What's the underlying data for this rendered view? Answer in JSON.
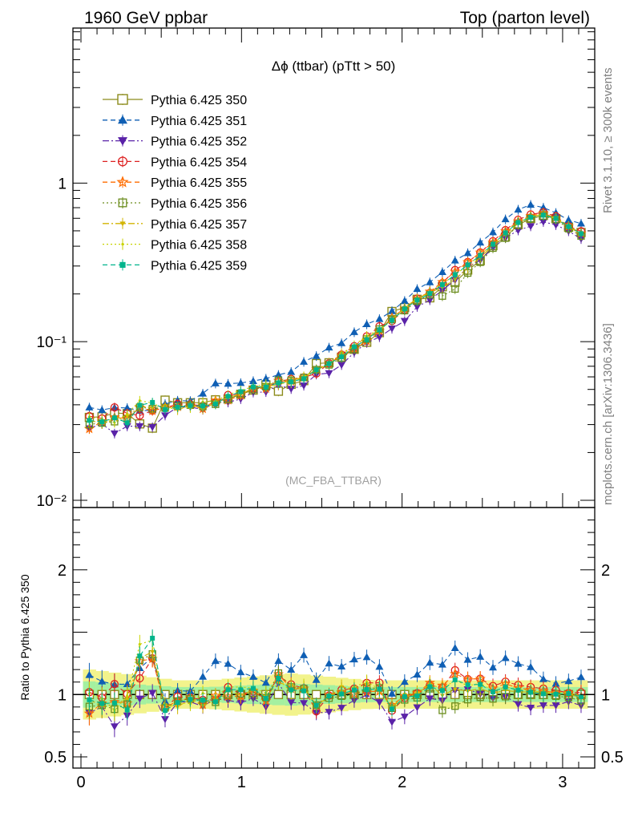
{
  "header": {
    "left": "1960 GeV ppbar",
    "right": "Top (parton level)"
  },
  "plot_title": "Δϕ (ttbar) (pTtt > 50)",
  "watermark": "(MC_FBA_TTBAR)",
  "side_labels": {
    "upper": "Rivet 3.1.10, ≥ 300k events",
    "lower": "mcplots.cern.ch [arXiv:1306.3436]"
  },
  "chart_data": [
    {
      "type": "scatter",
      "panel": "main",
      "yscale": "log",
      "xlim": [
        -0.05,
        3.2
      ],
      "ylim": [
        0.009,
        9.5
      ],
      "grid": false,
      "legend": "top-left",
      "y_ticks": [
        {
          "value": 1,
          "label": "1"
        },
        {
          "value": 0.1,
          "label": "10⁻¹"
        },
        {
          "value": 0.01,
          "label": "10⁻²"
        }
      ],
      "x": [
        0.052,
        0.131,
        0.209,
        0.288,
        0.366,
        0.445,
        0.524,
        0.602,
        0.681,
        0.759,
        0.838,
        0.916,
        0.995,
        1.073,
        1.152,
        1.23,
        1.309,
        1.388,
        1.466,
        1.545,
        1.623,
        1.702,
        1.78,
        1.859,
        1.937,
        2.016,
        2.094,
        2.173,
        2.251,
        2.33,
        2.409,
        2.487,
        2.566,
        2.644,
        2.723,
        2.801,
        2.88,
        2.958,
        3.037,
        3.115
      ],
      "series": [
        {
          "name": "Pythia 6.425 350",
          "color": "#8c8c1c",
          "marker": "open-square",
          "dash": "solid",
          "values": [
            0.0333,
            0.0336,
            0.0355,
            0.0352,
            0.0303,
            0.0285,
            0.0428,
            0.0412,
            0.0412,
            0.0412,
            0.043,
            0.0435,
            0.0466,
            0.0495,
            0.0534,
            0.0487,
            0.0538,
            0.0568,
            0.0728,
            0.0736,
            0.0799,
            0.0895,
            0.0991,
            0.114,
            0.155,
            0.164,
            0.185,
            0.189,
            0.222,
            0.237,
            0.283,
            0.324,
            0.403,
            0.458,
            0.546,
            0.598,
            0.624,
            0.597,
            0.528,
            0.488
          ]
        },
        {
          "name": "Pythia 6.425 351",
          "color": "#0f5fb4",
          "marker": "filled-triangle-up",
          "dash": "dashed",
          "values": [
            0.0385,
            0.0371,
            0.0384,
            0.0382,
            0.0367,
            0.037,
            0.0405,
            0.0425,
            0.0423,
            0.0471,
            0.0546,
            0.0543,
            0.0549,
            0.0565,
            0.0585,
            0.0618,
            0.0645,
            0.0748,
            0.0813,
            0.0919,
            0.0979,
            0.115,
            0.129,
            0.139,
            0.156,
            0.181,
            0.215,
            0.237,
            0.275,
            0.325,
            0.362,
            0.422,
            0.49,
            0.592,
            0.681,
            0.73,
            0.701,
            0.649,
            0.585,
            0.556
          ]
        },
        {
          "name": "Pythia 6.425 352",
          "color": "#5a22a8",
          "marker": "filled-triangle-down",
          "dash": "dashdot",
          "values": [
            0.0284,
            0.0303,
            0.0264,
            0.0293,
            0.0293,
            0.0289,
            0.0343,
            0.0387,
            0.0388,
            0.0373,
            0.0416,
            0.0415,
            0.0435,
            0.0479,
            0.0482,
            0.0531,
            0.0504,
            0.0529,
            0.0622,
            0.0633,
            0.0714,
            0.0854,
            0.0985,
            0.107,
            0.121,
            0.135,
            0.166,
            0.183,
            0.211,
            0.245,
            0.295,
            0.326,
            0.391,
            0.451,
            0.504,
            0.535,
            0.57,
            0.545,
            0.498,
            0.445
          ]
        },
        {
          "name": "Pythia 6.425 354",
          "color": "#dd2020",
          "marker": "open-circle",
          "dash": "dashed",
          "values": [
            0.0339,
            0.0328,
            0.0385,
            0.0353,
            0.0342,
            0.0368,
            0.0382,
            0.0405,
            0.0402,
            0.0394,
            0.0411,
            0.0461,
            0.0468,
            0.0507,
            0.0516,
            0.056,
            0.0582,
            0.0596,
            0.063,
            0.073,
            0.0829,
            0.0937,
            0.108,
            0.125,
            0.135,
            0.159,
            0.187,
            0.203,
            0.234,
            0.283,
            0.318,
            0.365,
            0.43,
            0.505,
            0.587,
            0.634,
            0.654,
            0.618,
            0.534,
            0.497
          ]
        },
        {
          "name": "Pythia 6.425 355",
          "color": "#ff6d00",
          "marker": "open-star",
          "dash": "dashed",
          "values": [
            0.0282,
            0.0313,
            0.0334,
            0.0327,
            0.0384,
            0.0367,
            0.0386,
            0.0389,
            0.0402,
            0.0378,
            0.0426,
            0.0428,
            0.0459,
            0.0511,
            0.0507,
            0.0567,
            0.0563,
            0.0595,
            0.0668,
            0.0733,
            0.0813,
            0.0901,
            0.101,
            0.117,
            0.142,
            0.162,
            0.187,
            0.207,
            0.238,
            0.276,
            0.318,
            0.365,
            0.423,
            0.497,
            0.575,
            0.621,
            0.643,
            0.604,
            0.535,
            0.482
          ]
        },
        {
          "name": "Pythia 6.425 356",
          "color": "#6a8c1c",
          "marker": "open-square-small",
          "dash": "dotted",
          "values": [
            0.0301,
            0.0307,
            0.0313,
            0.0326,
            0.0386,
            0.0378,
            0.0382,
            0.0391,
            0.0398,
            0.039,
            0.0403,
            0.0434,
            0.0469,
            0.0499,
            0.0521,
            0.0571,
            0.0571,
            0.0595,
            0.0666,
            0.0714,
            0.0789,
            0.0893,
            0.104,
            0.12,
            0.138,
            0.157,
            0.18,
            0.198,
            0.194,
            0.215,
            0.271,
            0.317,
            0.389,
            0.45,
            0.544,
            0.598,
            0.62,
            0.589,
            0.516,
            0.464
          ]
        },
        {
          "name": "Pythia 6.425 357",
          "color": "#d2b400",
          "marker": "tri-down",
          "dash": "dashdot",
          "values": [
            0.0321,
            0.0303,
            0.0329,
            0.0339,
            0.0391,
            0.0383,
            0.0393,
            0.0371,
            0.0396,
            0.0375,
            0.0411,
            0.0448,
            0.0464,
            0.0512,
            0.0526,
            0.0532,
            0.0578,
            0.0594,
            0.0666,
            0.0722,
            0.0848,
            0.0937,
            0.107,
            0.117,
            0.139,
            0.164,
            0.187,
            0.204,
            0.22,
            0.247,
            0.291,
            0.339,
            0.407,
            0.473,
            0.557,
            0.61,
            0.636,
            0.595,
            0.532,
            0.474
          ]
        },
        {
          "name": "Pythia 6.425 358",
          "color": "#c8d200",
          "marker": "dot",
          "dash": "dotted",
          "values": [
            0.0335,
            0.0325,
            0.0309,
            0.0349,
            0.0425,
            0.041,
            0.0375,
            0.0385,
            0.0382,
            0.0417,
            0.0423,
            0.0462,
            0.0493,
            0.0521,
            0.0541,
            0.0547,
            0.0548,
            0.0606,
            0.0664,
            0.0721,
            0.0821,
            0.095,
            0.109,
            0.119,
            0.136,
            0.161,
            0.185,
            0.205,
            0.232,
            0.264,
            0.303,
            0.353,
            0.415,
            0.484,
            0.573,
            0.615,
            0.636,
            0.605,
            0.537,
            0.482
          ]
        },
        {
          "name": "Pythia 6.425 359",
          "color": "#00b48c",
          "marker": "filled-square",
          "dash": "dashed",
          "values": [
            0.0319,
            0.0312,
            0.0331,
            0.0308,
            0.0397,
            0.0414,
            0.0373,
            0.0386,
            0.0396,
            0.0393,
            0.0405,
            0.0452,
            0.0484,
            0.0519,
            0.0518,
            0.055,
            0.0558,
            0.0584,
            0.0665,
            0.0727,
            0.0803,
            0.0927,
            0.103,
            0.119,
            0.137,
            0.161,
            0.183,
            0.201,
            0.229,
            0.265,
            0.305,
            0.35,
            0.412,
            0.486,
            0.565,
            0.609,
            0.628,
            0.599,
            0.532,
            0.48
          ]
        }
      ]
    },
    {
      "type": "scatter",
      "panel": "ratio",
      "ylabel": "Ratio to Pythia 6.425 350",
      "xlim": [
        -0.05,
        3.2
      ],
      "ylim": [
        0.41,
        2.5
      ],
      "y_ticks": [
        {
          "value": 2,
          "label": "2"
        },
        {
          "value": 1,
          "label": "1"
        },
        {
          "value": 0.5,
          "label": "0.5"
        }
      ],
      "x_ticks": [
        {
          "value": 0,
          "label": "0"
        },
        {
          "value": 1,
          "label": "1"
        },
        {
          "value": 2,
          "label": "2"
        },
        {
          "value": 3,
          "label": "3"
        }
      ],
      "ratio_series": [
        {
          "name": "Pythia 6.425 351",
          "values": [
            1.157,
            1.105,
            1.081,
            1.084,
            1.212,
            1.298,
            0.946,
            1.032,
            1.026,
            1.143,
            1.269,
            1.247,
            1.179,
            1.142,
            1.095,
            1.27,
            1.199,
            1.316,
            1.117,
            1.249,
            1.225,
            1.282,
            1.3,
            1.223,
            1.007,
            1.102,
            1.16,
            1.256,
            1.24,
            1.373,
            1.279,
            1.303,
            1.217,
            1.293,
            1.247,
            1.22,
            1.124,
            1.087,
            1.108,
            1.14
          ]
        },
        {
          "name": "Pythia 6.425 352",
          "values": [
            0.853,
            0.901,
            0.744,
            0.831,
            0.967,
            1.013,
            0.802,
            0.939,
            0.941,
            0.906,
            0.967,
            0.954,
            0.934,
            0.968,
            0.902,
            1.09,
            0.937,
            0.931,
            0.854,
            0.86,
            0.893,
            0.954,
            0.994,
            0.938,
            0.78,
            0.822,
            0.897,
            0.969,
            0.952,
            1.034,
            1.042,
            1.005,
            0.97,
            0.985,
            0.923,
            0.894,
            0.913,
            0.913,
            0.943,
            0.912
          ]
        },
        {
          "name": "Pythia 6.425 354",
          "values": [
            1.019,
            0.975,
            1.084,
            1.004,
            1.13,
            1.29,
            0.892,
            0.983,
            0.975,
            0.957,
            0.956,
            1.059,
            1.004,
            1.025,
            0.967,
            1.15,
            1.081,
            1.05,
            0.866,
            0.992,
            1.038,
            1.047,
            1.093,
            1.095,
            0.871,
            0.971,
            1.011,
            1.073,
            1.055,
            1.195,
            1.124,
            1.127,
            1.068,
            1.103,
            1.076,
            1.06,
            1.047,
            1.035,
            1.012,
            1.018
          ]
        },
        {
          "name": "Pythia 6.425 355",
          "values": [
            0.848,
            0.93,
            0.941,
            0.93,
            1.268,
            1.287,
            0.901,
            0.944,
            0.976,
            0.918,
            0.991,
            0.984,
            0.985,
            1.032,
            0.949,
            1.163,
            1.046,
            1.048,
            0.917,
            0.996,
            1.017,
            1.007,
            1.023,
            1.026,
            0.916,
            0.988,
            1.011,
            1.095,
            1.072,
            1.165,
            1.124,
            1.127,
            1.05,
            1.085,
            1.053,
            1.038,
            1.031,
            1.012,
            1.013,
            0.988
          ]
        },
        {
          "name": "Pythia 6.425 356",
          "values": [
            0.904,
            0.914,
            0.882,
            0.925,
            1.275,
            1.325,
            0.893,
            0.948,
            0.966,
            0.946,
            0.938,
            0.997,
            1.006,
            1.009,
            0.976,
            1.172,
            1.061,
            1.047,
            0.915,
            0.971,
            0.987,
            0.998,
            1.05,
            1.053,
            0.89,
            0.957,
            0.974,
            1.046,
            0.873,
            0.907,
            0.959,
            0.978,
            0.965,
            0.983,
            0.996,
            1.0,
            0.994,
            0.987,
            0.977,
            0.951
          ]
        },
        {
          "name": "Pythia 6.425 357",
          "values": [
            0.963,
            0.901,
            0.926,
            0.963,
            1.291,
            1.343,
            0.917,
            0.902,
            0.962,
            0.91,
            0.956,
            1.029,
            0.995,
            1.035,
            0.985,
            1.092,
            1.075,
            1.046,
            0.915,
            0.981,
            1.061,
            1.047,
            1.08,
            1.026,
            0.897,
            0.999,
            1.011,
            1.08,
            0.993,
            1.043,
            1.028,
            1.047,
            1.01,
            1.033,
            1.02,
            1.02,
            1.019,
            0.997,
            1.008,
            0.971
          ]
        },
        {
          "name": "Pythia 6.425 358",
          "values": [
            1.007,
            0.967,
            0.871,
            0.991,
            1.403,
            1.437,
            0.876,
            0.934,
            0.927,
            1.011,
            0.983,
            1.062,
            1.059,
            1.053,
            1.013,
            1.123,
            1.019,
            1.067,
            0.912,
            0.979,
            1.028,
            1.062,
            1.1,
            1.044,
            0.877,
            0.981,
            1.0,
            1.084,
            1.046,
            1.114,
            1.071,
            1.09,
            1.029,
            1.056,
            1.049,
            1.028,
            1.019,
            1.013,
            1.017,
            0.987
          ]
        },
        {
          "name": "Pythia 6.425 359",
          "values": [
            0.958,
            0.928,
            0.932,
            0.876,
            1.309,
            1.452,
            0.872,
            0.936,
            0.962,
            0.954,
            0.942,
            1.039,
            1.038,
            1.049,
            0.969,
            1.13,
            1.037,
            1.029,
            0.914,
            0.988,
            1.005,
            1.036,
            1.04,
            1.044,
            0.885,
            0.983,
            0.989,
            1.063,
            1.032,
            1.118,
            1.078,
            1.081,
            1.022,
            1.061,
            1.035,
            1.018,
            1.006,
            1.003,
            1.008,
            0.983
          ]
        }
      ]
    }
  ]
}
